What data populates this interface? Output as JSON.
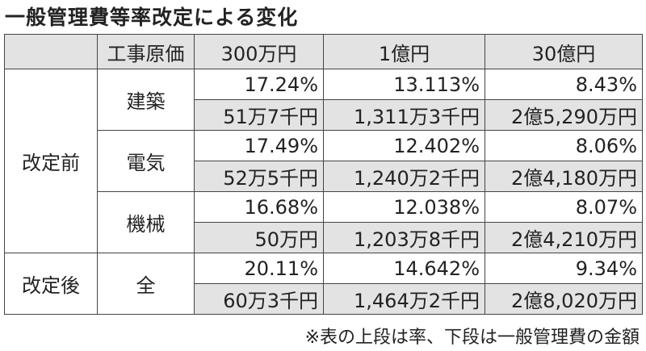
{
  "title": "一般管理費等率改定による変化",
  "table": {
    "header": [
      "工事原価",
      "300万円",
      "1億円",
      "30億円"
    ],
    "groups": [
      {
        "label": "改定前",
        "items": [
          {
            "name": "建築",
            "rates": [
              "17.24%",
              "13.113%",
              "8.43%"
            ],
            "amounts": [
              "51万7千円",
              "1,311万3千円",
              "2億5,290万円"
            ]
          },
          {
            "name": "電気",
            "rates": [
              "17.49%",
              "12.402%",
              "8.06%"
            ],
            "amounts": [
              "52万5千円",
              "1,240万2千円",
              "2億4,180万円"
            ]
          },
          {
            "name": "機械",
            "rates": [
              "16.68%",
              "12.038%",
              "8.07%"
            ],
            "amounts": [
              "50万円",
              "1,203万8千円",
              "2億4,210万円"
            ]
          }
        ]
      },
      {
        "label": "改定後",
        "items": [
          {
            "name": "全",
            "rates": [
              "20.11%",
              "14.642%",
              "9.34%"
            ],
            "amounts": [
              "60万3千円",
              "1,464万2千円",
              "2億8,020万円"
            ]
          }
        ]
      }
    ]
  },
  "note": "※表の上段は率、下段は一般管理費の金額"
}
